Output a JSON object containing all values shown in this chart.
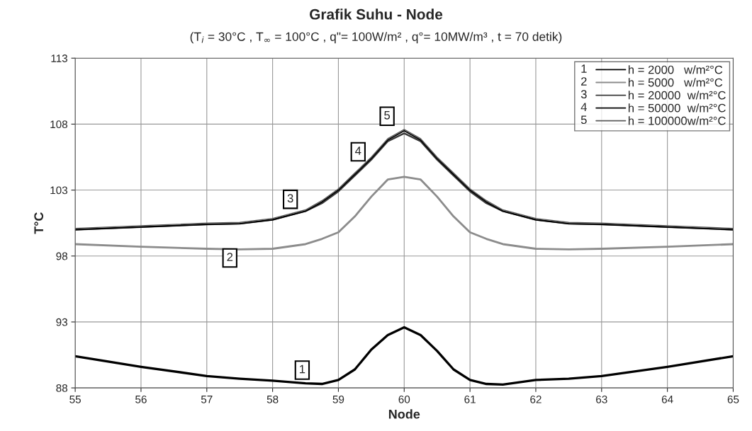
{
  "chart_data": {
    "type": "line",
    "title": "Grafik Suhu - Node",
    "subtitle": "(T$_{i}$ = 30°C , T$_{∞}$ = 100°C , q\"= 100W/m² , q°= 10MW/m³ , t = 70 detik)",
    "xlabel": "Node",
    "ylabel": "T°C",
    "x": [
      55,
      56,
      57,
      57.5,
      58,
      58.5,
      58.75,
      59,
      59.25,
      59.5,
      59.75,
      60,
      60.25,
      60.5,
      60.75,
      61,
      61.25,
      61.5,
      62,
      62.5,
      63,
      64,
      65
    ],
    "series": [
      {
        "name": "h = 2000   w/m²°C",
        "color": "#000000",
        "values": [
          90.4,
          89.6,
          88.9,
          88.7,
          88.55,
          88.35,
          88.3,
          88.6,
          89.4,
          90.9,
          92.0,
          92.6,
          92.0,
          90.8,
          89.4,
          88.6,
          88.3,
          88.25,
          88.6,
          88.7,
          88.9,
          89.6,
          90.4
        ]
      },
      {
        "name": "h = 5000   w/m²°C",
        "color": "#8c8c8c",
        "values": [
          98.9,
          98.7,
          98.55,
          98.5,
          98.55,
          98.9,
          99.3,
          99.8,
          101.0,
          102.5,
          103.8,
          104.0,
          103.8,
          102.5,
          101.0,
          99.8,
          99.3,
          98.9,
          98.55,
          98.5,
          98.55,
          98.7,
          98.9
        ]
      },
      {
        "name": "h = 20000  w/m²°C",
        "color": "#3a3a3a",
        "values": [
          100.0,
          100.2,
          100.4,
          100.45,
          100.75,
          101.4,
          102.0,
          102.9,
          104.1,
          105.3,
          106.7,
          107.3,
          106.7,
          105.3,
          104.1,
          102.9,
          102.0,
          101.4,
          100.75,
          100.45,
          100.4,
          100.2,
          100.0
        ]
      },
      {
        "name": "h = 50000  w/m²°C",
        "color": "#000000",
        "values": [
          100.0,
          100.2,
          100.4,
          100.45,
          100.75,
          101.4,
          102.1,
          103.0,
          104.2,
          105.4,
          106.8,
          107.5,
          106.8,
          105.4,
          104.2,
          103.0,
          102.1,
          101.4,
          100.75,
          100.45,
          100.4,
          100.2,
          100.0
        ]
      },
      {
        "name": "h = 100000w/m²°C",
        "color": "#5a5a5a",
        "values": [
          100.1,
          100.3,
          100.5,
          100.55,
          100.85,
          101.5,
          102.2,
          103.1,
          104.3,
          105.5,
          106.9,
          107.6,
          106.9,
          105.5,
          104.3,
          103.1,
          102.2,
          101.5,
          100.85,
          100.55,
          100.5,
          100.3,
          100.1
        ]
      }
    ],
    "xlim": [
      55,
      65
    ],
    "xticks": [
      55,
      56,
      57,
      58,
      59,
      60,
      61,
      62,
      63,
      64,
      65
    ],
    "ylim": [
      88,
      113
    ],
    "yticks": [
      88,
      93,
      98,
      103,
      108,
      113
    ],
    "grid": true,
    "legend": "top right",
    "marker": "none",
    "line_style": "solid",
    "annotations": [
      {
        "text": "1",
        "x": 58.45,
        "y": 89.35
      },
      {
        "text": "2",
        "x": 57.35,
        "y": 97.85
      },
      {
        "text": "3",
        "x": 58.27,
        "y": 102.3
      },
      {
        "text": "4",
        "x": 59.3,
        "y": 105.9
      },
      {
        "text": "5",
        "x": 59.74,
        "y": 108.6
      },
      "1",
      "2",
      "3",
      "4",
      "5"
    ]
  }
}
